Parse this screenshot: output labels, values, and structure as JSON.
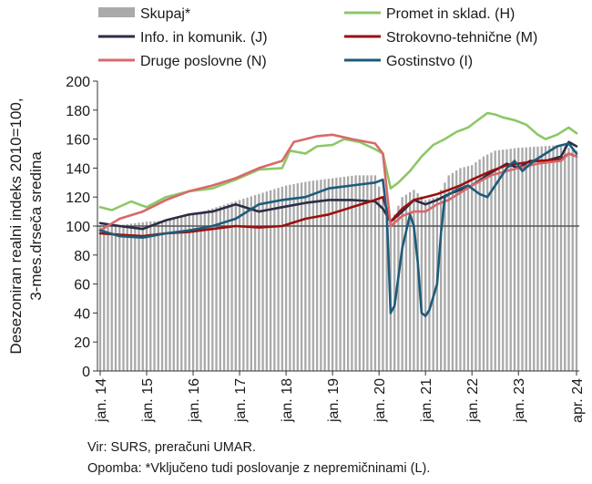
{
  "chart_data": {
    "type": "line",
    "ylabel_line1": "Desezoniran realni indeks 2010=100,",
    "ylabel_line2": "3-mes.drseča sredina",
    "ylim": [
      0,
      200
    ],
    "yticks": [
      0,
      20,
      40,
      60,
      80,
      100,
      120,
      140,
      160,
      180,
      200
    ],
    "x_range": [
      "2014-01",
      "2024-04"
    ],
    "x_ticks": [
      "jan. 14",
      "jan. 15",
      "jan. 16",
      "jan. 17",
      "jan. 18",
      "jan. 19",
      "jan. 20",
      "jan. 21",
      "jan. 22",
      "jan. 23",
      "apr. 24"
    ],
    "grid": false,
    "legend_placement": "top",
    "reference_line": 100,
    "series": [
      {
        "name": "Skupaj*",
        "type": "bar",
        "color": "#aaaaaa",
        "points": [
          [
            "2014-01",
            100
          ],
          [
            "2014-07",
            101
          ],
          [
            "2015-01",
            103
          ],
          [
            "2015-07",
            104
          ],
          [
            "2016-01",
            108
          ],
          [
            "2016-07",
            113
          ],
          [
            "2017-01",
            118
          ],
          [
            "2017-07",
            123
          ],
          [
            "2018-01",
            128
          ],
          [
            "2018-07",
            131
          ],
          [
            "2019-01",
            133
          ],
          [
            "2019-07",
            135
          ],
          [
            "2019-12",
            135
          ],
          [
            "2020-03",
            112
          ],
          [
            "2020-04",
            100
          ],
          [
            "2020-05",
            108
          ],
          [
            "2020-07",
            120
          ],
          [
            "2020-10",
            125
          ],
          [
            "2021-01",
            118
          ],
          [
            "2021-04",
            120
          ],
          [
            "2021-07",
            135
          ],
          [
            "2021-10",
            140
          ],
          [
            "2022-01",
            142
          ],
          [
            "2022-04",
            148
          ],
          [
            "2022-07",
            152
          ],
          [
            "2022-10",
            153
          ],
          [
            "2023-01",
            154
          ],
          [
            "2023-07",
            155
          ],
          [
            "2023-12",
            156
          ],
          [
            "2024-04",
            152
          ]
        ]
      },
      {
        "name": "Promet in sklad. (H)",
        "type": "line",
        "color": "#8cc866",
        "points": [
          [
            "2014-01",
            113
          ],
          [
            "2014-04",
            111
          ],
          [
            "2014-09",
            117
          ],
          [
            "2015-01",
            113
          ],
          [
            "2015-06",
            120
          ],
          [
            "2015-12",
            124
          ],
          [
            "2016-06",
            126
          ],
          [
            "2016-12",
            132
          ],
          [
            "2017-06",
            139
          ],
          [
            "2017-12",
            140
          ],
          [
            "2018-02",
            152
          ],
          [
            "2018-06",
            150
          ],
          [
            "2018-09",
            155
          ],
          [
            "2019-01",
            156
          ],
          [
            "2019-04",
            160
          ],
          [
            "2019-08",
            158
          ],
          [
            "2019-12",
            153
          ],
          [
            "2020-02",
            150
          ],
          [
            "2020-04",
            126
          ],
          [
            "2020-06",
            130
          ],
          [
            "2020-09",
            138
          ],
          [
            "2020-12",
            148
          ],
          [
            "2021-03",
            156
          ],
          [
            "2021-06",
            160
          ],
          [
            "2021-09",
            165
          ],
          [
            "2021-12",
            168
          ],
          [
            "2022-02",
            172
          ],
          [
            "2022-05",
            178
          ],
          [
            "2022-07",
            177
          ],
          [
            "2022-09",
            175
          ],
          [
            "2022-12",
            173
          ],
          [
            "2023-03",
            170
          ],
          [
            "2023-06",
            163
          ],
          [
            "2023-08",
            160
          ],
          [
            "2023-11",
            163
          ],
          [
            "2024-02",
            168
          ],
          [
            "2024-04",
            164
          ]
        ]
      },
      {
        "name": "Info. in komunik. (J)",
        "type": "line",
        "color": "#2b2d45",
        "points": [
          [
            "2014-01",
            102
          ],
          [
            "2014-06",
            100
          ],
          [
            "2014-12",
            98
          ],
          [
            "2015-06",
            104
          ],
          [
            "2015-12",
            108
          ],
          [
            "2016-06",
            110
          ],
          [
            "2016-12",
            115
          ],
          [
            "2017-06",
            110
          ],
          [
            "2017-12",
            113
          ],
          [
            "2018-06",
            116
          ],
          [
            "2018-12",
            118
          ],
          [
            "2019-06",
            118
          ],
          [
            "2019-12",
            117
          ],
          [
            "2020-02",
            112
          ],
          [
            "2020-04",
            103
          ],
          [
            "2020-07",
            110
          ],
          [
            "2020-10",
            118
          ],
          [
            "2021-01",
            115
          ],
          [
            "2021-04",
            118
          ],
          [
            "2021-07",
            122
          ],
          [
            "2021-10",
            125
          ],
          [
            "2022-01",
            128
          ],
          [
            "2022-06",
            137
          ],
          [
            "2022-10",
            143
          ],
          [
            "2023-01",
            140
          ],
          [
            "2023-04",
            145
          ],
          [
            "2023-08",
            145
          ],
          [
            "2023-12",
            148
          ],
          [
            "2024-02",
            158
          ],
          [
            "2024-04",
            155
          ]
        ]
      },
      {
        "name": "Strokovno-tehnične (M)",
        "type": "line",
        "color": "#9b0f0f",
        "points": [
          [
            "2014-01",
            95
          ],
          [
            "2014-06",
            94
          ],
          [
            "2014-12",
            93
          ],
          [
            "2015-06",
            95
          ],
          [
            "2015-12",
            96
          ],
          [
            "2016-06",
            98
          ],
          [
            "2016-12",
            100
          ],
          [
            "2017-06",
            99
          ],
          [
            "2017-12",
            100
          ],
          [
            "2018-06",
            105
          ],
          [
            "2018-12",
            108
          ],
          [
            "2019-06",
            113
          ],
          [
            "2019-12",
            118
          ],
          [
            "2020-02",
            120
          ],
          [
            "2020-04",
            103
          ],
          [
            "2020-07",
            112
          ],
          [
            "2020-10",
            118
          ],
          [
            "2021-01",
            120
          ],
          [
            "2021-04",
            122
          ],
          [
            "2021-07",
            125
          ],
          [
            "2021-10",
            128
          ],
          [
            "2022-01",
            132
          ],
          [
            "2022-06",
            138
          ],
          [
            "2022-10",
            142
          ],
          [
            "2023-01",
            143
          ],
          [
            "2023-06",
            145
          ],
          [
            "2023-12",
            146
          ],
          [
            "2024-02",
            150
          ],
          [
            "2024-04",
            148
          ]
        ]
      },
      {
        "name": "Druge poslovne (N)",
        "type": "line",
        "color": "#d9686a",
        "points": [
          [
            "2014-01",
            97
          ],
          [
            "2014-06",
            105
          ],
          [
            "2014-12",
            110
          ],
          [
            "2015-06",
            118
          ],
          [
            "2015-12",
            124
          ],
          [
            "2016-06",
            128
          ],
          [
            "2016-12",
            133
          ],
          [
            "2017-06",
            140
          ],
          [
            "2017-12",
            145
          ],
          [
            "2018-03",
            158
          ],
          [
            "2018-06",
            160
          ],
          [
            "2018-09",
            162
          ],
          [
            "2019-01",
            163
          ],
          [
            "2019-06",
            160
          ],
          [
            "2019-12",
            157
          ],
          [
            "2020-02",
            150
          ],
          [
            "2020-04",
            100
          ],
          [
            "2020-07",
            107
          ],
          [
            "2020-10",
            110
          ],
          [
            "2021-01",
            110
          ],
          [
            "2021-04",
            115
          ],
          [
            "2021-07",
            118
          ],
          [
            "2021-10",
            123
          ],
          [
            "2022-01",
            128
          ],
          [
            "2022-06",
            135
          ],
          [
            "2022-10",
            138
          ],
          [
            "2023-01",
            140
          ],
          [
            "2023-06",
            143
          ],
          [
            "2023-12",
            145
          ],
          [
            "2024-02",
            150
          ],
          [
            "2024-04",
            148
          ]
        ]
      },
      {
        "name": "Gostinstvo (I)",
        "type": "line",
        "color": "#1d5b7a",
        "points": [
          [
            "2014-01",
            97
          ],
          [
            "2014-06",
            93
          ],
          [
            "2014-12",
            92
          ],
          [
            "2015-06",
            95
          ],
          [
            "2015-12",
            97
          ],
          [
            "2016-06",
            100
          ],
          [
            "2016-12",
            105
          ],
          [
            "2017-06",
            115
          ],
          [
            "2017-12",
            118
          ],
          [
            "2018-06",
            120
          ],
          [
            "2018-12",
            126
          ],
          [
            "2019-06",
            128
          ],
          [
            "2019-12",
            130
          ],
          [
            "2020-02",
            132
          ],
          [
            "2020-03",
            108
          ],
          [
            "2020-04",
            40
          ],
          [
            "2020-05",
            45
          ],
          [
            "2020-07",
            85
          ],
          [
            "2020-09",
            108
          ],
          [
            "2020-10",
            100
          ],
          [
            "2020-11",
            75
          ],
          [
            "2020-12",
            40
          ],
          [
            "2021-01",
            38
          ],
          [
            "2021-02",
            42
          ],
          [
            "2021-04",
            60
          ],
          [
            "2021-05",
            95
          ],
          [
            "2021-06",
            120
          ],
          [
            "2021-09",
            125
          ],
          [
            "2021-12",
            128
          ],
          [
            "2022-03",
            122
          ],
          [
            "2022-05",
            120
          ],
          [
            "2022-07",
            128
          ],
          [
            "2022-10",
            140
          ],
          [
            "2022-12",
            145
          ],
          [
            "2023-02",
            138
          ],
          [
            "2023-05",
            145
          ],
          [
            "2023-08",
            150
          ],
          [
            "2023-11",
            155
          ],
          [
            "2024-02",
            157
          ],
          [
            "2024-04",
            150
          ]
        ]
      }
    ]
  },
  "footnote": {
    "source": "Vir: SURS, preračuni UMAR.",
    "note": "Opomba: *Vključeno tudi poslovanje z nepremičninami (L)."
  }
}
